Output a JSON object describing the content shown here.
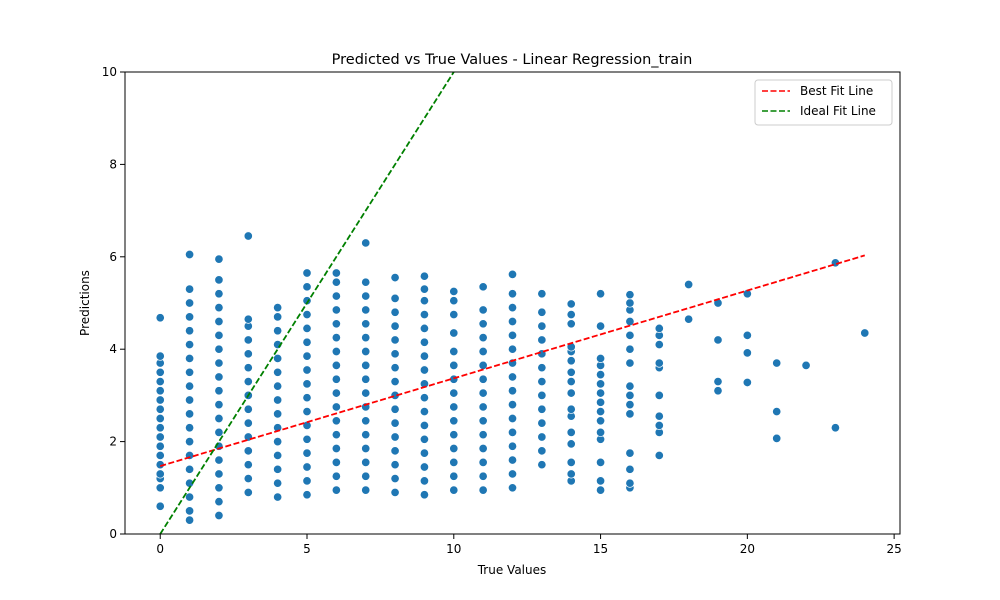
{
  "chart_data": {
    "type": "scatter",
    "title": "Predicted vs True Values - Linear Regression_train",
    "xlabel": "True Values",
    "ylabel": "Predictions",
    "xlim": [
      -1.2,
      25.2
    ],
    "ylim": [
      0,
      10
    ],
    "x_ticks": [
      0,
      5,
      10,
      15,
      20,
      25
    ],
    "y_ticks": [
      0,
      2,
      4,
      6,
      8,
      10
    ],
    "grid": false,
    "legend_position": "top-right",
    "series": [
      {
        "name": "",
        "kind": "scatter",
        "color": "#1f77b4",
        "points": [
          [
            0,
            0.6
          ],
          [
            0,
            1.0
          ],
          [
            0,
            1.2
          ],
          [
            0,
            1.3
          ],
          [
            0,
            1.5
          ],
          [
            0,
            1.7
          ],
          [
            0,
            1.9
          ],
          [
            0,
            2.1
          ],
          [
            0,
            2.3
          ],
          [
            0,
            2.5
          ],
          [
            0,
            2.7
          ],
          [
            0,
            2.9
          ],
          [
            0,
            3.1
          ],
          [
            0,
            3.3
          ],
          [
            0,
            3.5
          ],
          [
            0,
            3.7
          ],
          [
            0,
            3.85
          ],
          [
            0,
            4.68
          ],
          [
            1,
            0.3
          ],
          [
            1,
            0.5
          ],
          [
            1,
            0.8
          ],
          [
            1,
            1.1
          ],
          [
            1,
            1.4
          ],
          [
            1,
            1.7
          ],
          [
            1,
            2.0
          ],
          [
            1,
            2.3
          ],
          [
            1,
            2.6
          ],
          [
            1,
            2.9
          ],
          [
            1,
            3.2
          ],
          [
            1,
            3.5
          ],
          [
            1,
            3.8
          ],
          [
            1,
            4.1
          ],
          [
            1,
            4.4
          ],
          [
            1,
            4.7
          ],
          [
            1,
            5.0
          ],
          [
            1,
            5.3
          ],
          [
            1,
            6.05
          ],
          [
            2,
            0.4
          ],
          [
            2,
            0.7
          ],
          [
            2,
            1.0
          ],
          [
            2,
            1.3
          ],
          [
            2,
            1.6
          ],
          [
            2,
            1.9
          ],
          [
            2,
            2.2
          ],
          [
            2,
            2.5
          ],
          [
            2,
            2.8
          ],
          [
            2,
            3.1
          ],
          [
            2,
            3.4
          ],
          [
            2,
            3.7
          ],
          [
            2,
            4.0
          ],
          [
            2,
            4.3
          ],
          [
            2,
            4.6
          ],
          [
            2,
            4.9
          ],
          [
            2,
            5.2
          ],
          [
            2,
            5.5
          ],
          [
            2,
            5.95
          ],
          [
            3,
            0.9
          ],
          [
            3,
            1.2
          ],
          [
            3,
            1.5
          ],
          [
            3,
            1.8
          ],
          [
            3,
            2.1
          ],
          [
            3,
            2.4
          ],
          [
            3,
            2.7
          ],
          [
            3,
            3.0
          ],
          [
            3,
            3.3
          ],
          [
            3,
            3.6
          ],
          [
            3,
            3.9
          ],
          [
            3,
            4.2
          ],
          [
            3,
            4.5
          ],
          [
            3,
            4.65
          ],
          [
            3,
            6.45
          ],
          [
            4,
            0.8
          ],
          [
            4,
            1.1
          ],
          [
            4,
            1.4
          ],
          [
            4,
            1.7
          ],
          [
            4,
            2.0
          ],
          [
            4,
            2.3
          ],
          [
            4,
            2.6
          ],
          [
            4,
            2.9
          ],
          [
            4,
            3.2
          ],
          [
            4,
            3.5
          ],
          [
            4,
            3.8
          ],
          [
            4,
            4.1
          ],
          [
            4,
            4.4
          ],
          [
            4,
            4.7
          ],
          [
            4,
            4.9
          ],
          [
            5,
            0.85
          ],
          [
            5,
            1.15
          ],
          [
            5,
            1.45
          ],
          [
            5,
            1.75
          ],
          [
            5,
            2.05
          ],
          [
            5,
            2.35
          ],
          [
            5,
            2.65
          ],
          [
            5,
            2.95
          ],
          [
            5,
            3.25
          ],
          [
            5,
            3.55
          ],
          [
            5,
            3.85
          ],
          [
            5,
            4.15
          ],
          [
            5,
            4.45
          ],
          [
            5,
            4.75
          ],
          [
            5,
            5.05
          ],
          [
            5,
            5.35
          ],
          [
            5,
            5.65
          ],
          [
            6,
            0.95
          ],
          [
            6,
            1.25
          ],
          [
            6,
            1.55
          ],
          [
            6,
            1.85
          ],
          [
            6,
            2.15
          ],
          [
            6,
            2.45
          ],
          [
            6,
            2.75
          ],
          [
            6,
            3.05
          ],
          [
            6,
            3.35
          ],
          [
            6,
            3.65
          ],
          [
            6,
            3.95
          ],
          [
            6,
            4.25
          ],
          [
            6,
            4.55
          ],
          [
            6,
            4.85
          ],
          [
            6,
            5.15
          ],
          [
            6,
            5.45
          ],
          [
            6,
            5.65
          ],
          [
            7,
            0.95
          ],
          [
            7,
            1.25
          ],
          [
            7,
            1.55
          ],
          [
            7,
            1.85
          ],
          [
            7,
            2.15
          ],
          [
            7,
            2.45
          ],
          [
            7,
            2.75
          ],
          [
            7,
            3.05
          ],
          [
            7,
            3.35
          ],
          [
            7,
            3.65
          ],
          [
            7,
            3.95
          ],
          [
            7,
            4.25
          ],
          [
            7,
            4.55
          ],
          [
            7,
            4.85
          ],
          [
            7,
            5.15
          ],
          [
            7,
            5.45
          ],
          [
            7,
            6.3
          ],
          [
            8,
            0.9
          ],
          [
            8,
            1.2
          ],
          [
            8,
            1.5
          ],
          [
            8,
            1.8
          ],
          [
            8,
            2.1
          ],
          [
            8,
            2.4
          ],
          [
            8,
            2.7
          ],
          [
            8,
            3.0
          ],
          [
            8,
            3.3
          ],
          [
            8,
            3.6
          ],
          [
            8,
            3.9
          ],
          [
            8,
            4.2
          ],
          [
            8,
            4.5
          ],
          [
            8,
            4.8
          ],
          [
            8,
            5.1
          ],
          [
            8,
            5.55
          ],
          [
            9,
            0.85
          ],
          [
            9,
            1.15
          ],
          [
            9,
            1.45
          ],
          [
            9,
            1.75
          ],
          [
            9,
            2.05
          ],
          [
            9,
            2.35
          ],
          [
            9,
            2.65
          ],
          [
            9,
            2.95
          ],
          [
            9,
            3.25
          ],
          [
            9,
            3.55
          ],
          [
            9,
            3.85
          ],
          [
            9,
            4.15
          ],
          [
            9,
            4.45
          ],
          [
            9,
            4.75
          ],
          [
            9,
            5.05
          ],
          [
            9,
            5.3
          ],
          [
            9,
            5.58
          ],
          [
            10,
            0.95
          ],
          [
            10,
            1.25
          ],
          [
            10,
            1.55
          ],
          [
            10,
            1.85
          ],
          [
            10,
            2.15
          ],
          [
            10,
            2.45
          ],
          [
            10,
            2.75
          ],
          [
            10,
            3.05
          ],
          [
            10,
            3.35
          ],
          [
            10,
            3.65
          ],
          [
            10,
            3.95
          ],
          [
            10,
            4.35
          ],
          [
            10,
            4.75
          ],
          [
            10,
            5.05
          ],
          [
            10,
            5.25
          ],
          [
            11,
            0.95
          ],
          [
            11,
            1.25
          ],
          [
            11,
            1.55
          ],
          [
            11,
            1.85
          ],
          [
            11,
            2.15
          ],
          [
            11,
            2.45
          ],
          [
            11,
            2.75
          ],
          [
            11,
            3.05
          ],
          [
            11,
            3.35
          ],
          [
            11,
            3.65
          ],
          [
            11,
            3.95
          ],
          [
            11,
            4.25
          ],
          [
            11,
            4.55
          ],
          [
            11,
            4.85
          ],
          [
            11,
            5.35
          ],
          [
            12,
            1.0
          ],
          [
            12,
            1.3
          ],
          [
            12,
            1.6
          ],
          [
            12,
            1.9
          ],
          [
            12,
            2.2
          ],
          [
            12,
            2.5
          ],
          [
            12,
            2.8
          ],
          [
            12,
            3.1
          ],
          [
            12,
            3.4
          ],
          [
            12,
            3.7
          ],
          [
            12,
            4.0
          ],
          [
            12,
            4.3
          ],
          [
            12,
            4.6
          ],
          [
            12,
            4.9
          ],
          [
            12,
            5.2
          ],
          [
            12,
            5.62
          ],
          [
            13,
            1.5
          ],
          [
            13,
            1.8
          ],
          [
            13,
            2.1
          ],
          [
            13,
            2.4
          ],
          [
            13,
            2.7
          ],
          [
            13,
            3.0
          ],
          [
            13,
            3.3
          ],
          [
            13,
            3.6
          ],
          [
            13,
            3.9
          ],
          [
            13,
            4.2
          ],
          [
            13,
            4.5
          ],
          [
            13,
            4.8
          ],
          [
            13,
            5.2
          ],
          [
            14,
            1.15
          ],
          [
            14,
            1.3
          ],
          [
            14,
            1.55
          ],
          [
            14,
            1.95
          ],
          [
            14,
            2.2
          ],
          [
            14,
            2.55
          ],
          [
            14,
            2.7
          ],
          [
            14,
            3.05
          ],
          [
            14,
            3.3
          ],
          [
            14,
            3.5
          ],
          [
            14,
            3.75
          ],
          [
            14,
            3.95
          ],
          [
            14,
            4.05
          ],
          [
            14,
            4.55
          ],
          [
            14,
            4.75
          ],
          [
            14,
            4.98
          ],
          [
            15,
            0.95
          ],
          [
            15,
            1.15
          ],
          [
            15,
            1.55
          ],
          [
            15,
            2.05
          ],
          [
            15,
            2.2
          ],
          [
            15,
            2.45
          ],
          [
            15,
            2.65
          ],
          [
            15,
            2.85
          ],
          [
            15,
            3.05
          ],
          [
            15,
            3.25
          ],
          [
            15,
            3.45
          ],
          [
            15,
            3.65
          ],
          [
            15,
            3.8
          ],
          [
            15,
            4.5
          ],
          [
            15,
            5.2
          ],
          [
            16,
            1.0
          ],
          [
            16,
            1.1
          ],
          [
            16,
            1.4
          ],
          [
            16,
            1.75
          ],
          [
            16,
            2.6
          ],
          [
            16,
            2.8
          ],
          [
            16,
            3.0
          ],
          [
            16,
            3.2
          ],
          [
            16,
            3.7
          ],
          [
            16,
            4.0
          ],
          [
            16,
            4.3
          ],
          [
            16,
            4.6
          ],
          [
            16,
            4.85
          ],
          [
            16,
            5.0
          ],
          [
            16,
            5.18
          ],
          [
            17,
            1.7
          ],
          [
            17,
            2.2
          ],
          [
            17,
            2.35
          ],
          [
            17,
            2.55
          ],
          [
            17,
            3.0
          ],
          [
            17,
            3.6
          ],
          [
            17,
            3.7
          ],
          [
            17,
            4.1
          ],
          [
            17,
            4.3
          ],
          [
            17,
            4.45
          ],
          [
            18,
            4.65
          ],
          [
            18,
            5.4
          ],
          [
            19,
            3.1
          ],
          [
            19,
            3.3
          ],
          [
            19,
            4.2
          ],
          [
            19,
            5.0
          ],
          [
            20,
            3.28
          ],
          [
            20,
            3.92
          ],
          [
            20,
            4.3
          ],
          [
            20,
            5.2
          ],
          [
            21,
            2.07
          ],
          [
            21,
            2.65
          ],
          [
            21,
            3.7
          ],
          [
            22,
            3.65
          ],
          [
            23,
            2.3
          ],
          [
            23,
            5.87
          ],
          [
            24,
            4.35
          ]
        ]
      },
      {
        "name": "Best Fit Line",
        "kind": "line",
        "style": "dashed",
        "color": "#ff0000",
        "x": [
          0,
          24
        ],
        "y": [
          1.47,
          6.03
        ]
      },
      {
        "name": "Ideal Fit Line",
        "kind": "line",
        "style": "dashed",
        "color": "#008000",
        "x": [
          0,
          10.2
        ],
        "y": [
          0,
          10.2
        ]
      }
    ]
  }
}
